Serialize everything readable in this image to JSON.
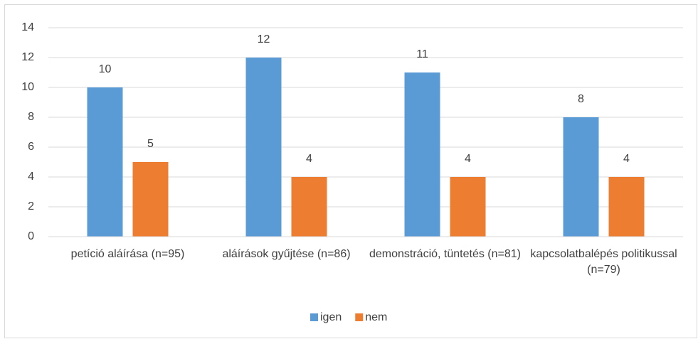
{
  "chart_data": {
    "type": "bar",
    "categories": [
      "petíció aláírása (n=95)",
      "aláírások gyűjtése (n=86)",
      "demonstráció, tüntetés (n=81)",
      "kapcsolatbalépés politikussal (n=79)"
    ],
    "series": [
      {
        "name": "igen",
        "color": "#5b9bd5",
        "values": [
          10,
          12,
          11,
          8
        ]
      },
      {
        "name": "nem",
        "color": "#ed7d31",
        "values": [
          5,
          4,
          4,
          4
        ]
      }
    ],
    "ylim": [
      0,
      14
    ],
    "yticks": [
      0,
      2,
      4,
      6,
      8,
      10,
      12,
      14
    ],
    "grid": true,
    "legend": "bottom"
  }
}
